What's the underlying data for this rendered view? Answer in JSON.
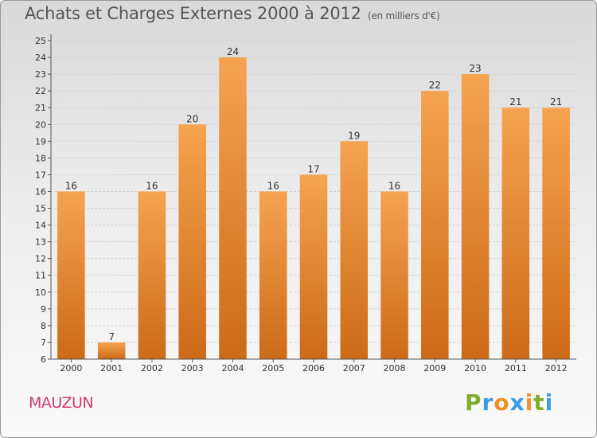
{
  "header": {
    "title": "Achats et Charges Externes 2000 à 2012",
    "subtitle": "(en milliers d'€)"
  },
  "footer": {
    "location": "MAUZUN"
  },
  "logo": {
    "text": "Proxiti",
    "letters": [
      {
        "char": "P",
        "color": "#7eaf2a"
      },
      {
        "char": "r",
        "color": "#3d9be0"
      },
      {
        "char": "o",
        "color": "#f0902a"
      },
      {
        "char": "x",
        "color": "#3d9be0"
      },
      {
        "char": "i",
        "color": "#f0902a"
      },
      {
        "char": "t",
        "color": "#7eaf2a"
      },
      {
        "char": "i",
        "color": "#3d9be0"
      }
    ]
  },
  "colors": {
    "bar_light": "#f6a350",
    "bar_dark": "#cc6a18",
    "grid": "#cfcfcf",
    "axis": "#555555",
    "text": "#333333"
  },
  "chart_data": {
    "type": "bar",
    "title": "Achats et Charges Externes 2000 à 2012",
    "subtitle": "(en milliers d'€)",
    "categories": [
      "2000",
      "2001",
      "2002",
      "2003",
      "2004",
      "2005",
      "2006",
      "2007",
      "2008",
      "2009",
      "2010",
      "2011",
      "2012"
    ],
    "values": [
      16,
      7,
      16,
      20,
      24,
      16,
      17,
      19,
      16,
      22,
      23,
      21,
      21
    ],
    "ylim": [
      6,
      25
    ],
    "yticks": [
      6,
      7,
      8,
      9,
      10,
      11,
      12,
      13,
      14,
      15,
      16,
      17,
      18,
      19,
      20,
      21,
      22,
      23,
      24,
      25
    ],
    "grid": true,
    "data_labels": true,
    "xlabel": "",
    "ylabel": ""
  }
}
